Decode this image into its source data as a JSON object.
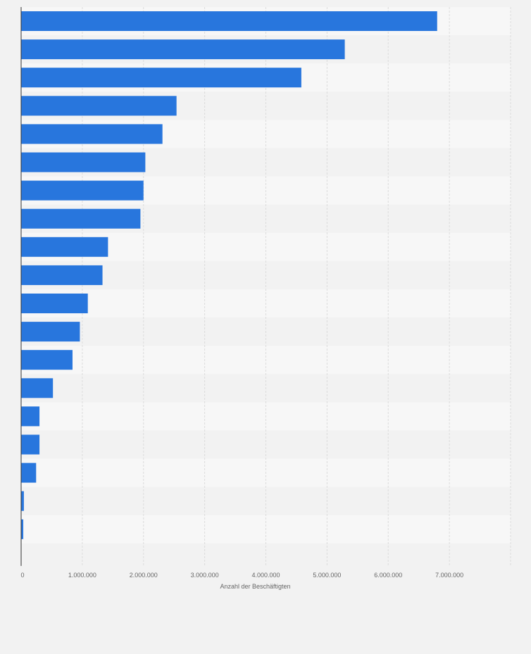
{
  "chart_data": {
    "type": "bar",
    "orientation": "horizontal",
    "title": "",
    "xlabel": "Anzahl der Beschäftigten",
    "ylabel": "",
    "xlim": [
      0,
      8000000
    ],
    "x_ticks": [
      0,
      1000000,
      2000000,
      3000000,
      4000000,
      5000000,
      6000000,
      7000000
    ],
    "x_tick_labels": [
      "0",
      "1.000.000",
      "2.000.000",
      "3.000.000",
      "4.000.000",
      "5.000.000",
      "6.000.000",
      "7.000.000"
    ],
    "grid": true,
    "category_labels_visible": false,
    "series": [
      {
        "name": "Anzahl der Beschäftigten",
        "color": "#2876dd",
        "values": [
          6800000,
          5290000,
          4580000,
          2540000,
          2310000,
          2030000,
          2000000,
          1950000,
          1420000,
          1330000,
          1090000,
          960000,
          840000,
          520000,
          300000,
          300000,
          245000,
          45000,
          35000
        ]
      }
    ]
  },
  "colors": {
    "bar": "#2876dd",
    "background": "#f2f2f2",
    "band_light": "#f7f7f7",
    "band_dark": "#f2f2f2",
    "grid": "#dcdcdc",
    "axis": "#333333"
  }
}
